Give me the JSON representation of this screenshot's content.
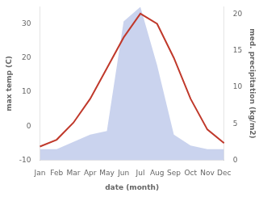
{
  "chart_data": {
    "type": "line",
    "categories": [
      "Jan",
      "Feb",
      "Mar",
      "Apr",
      "May",
      "Jun",
      "Jul",
      "Aug",
      "Sep",
      "Oct",
      "Nov",
      "Dec"
    ],
    "series": [
      {
        "type": "line",
        "color": "#c0392b",
        "values": [
          -6,
          -4,
          1,
          8,
          17,
          26,
          33,
          30,
          20,
          8,
          -1,
          -5
        ]
      },
      {
        "type": "area",
        "color": "#b8c4e8",
        "axis": "y2",
        "values": [
          1.5,
          1.5,
          2.5,
          3.5,
          4.0,
          19,
          21,
          13,
          3.5,
          2.0,
          1.5,
          1.5
        ]
      }
    ],
    "xlabel": "date (month)",
    "ylabel": "max temp (C)",
    "y2label": "med. precipitation (kg/m2)",
    "ylim": [
      -10,
      35
    ],
    "yticks": [
      -10,
      0,
      10,
      20,
      30
    ],
    "y2lim": [
      0,
      21
    ],
    "y2ticks": [
      0,
      5,
      10,
      15,
      20
    ],
    "grid": false
  }
}
